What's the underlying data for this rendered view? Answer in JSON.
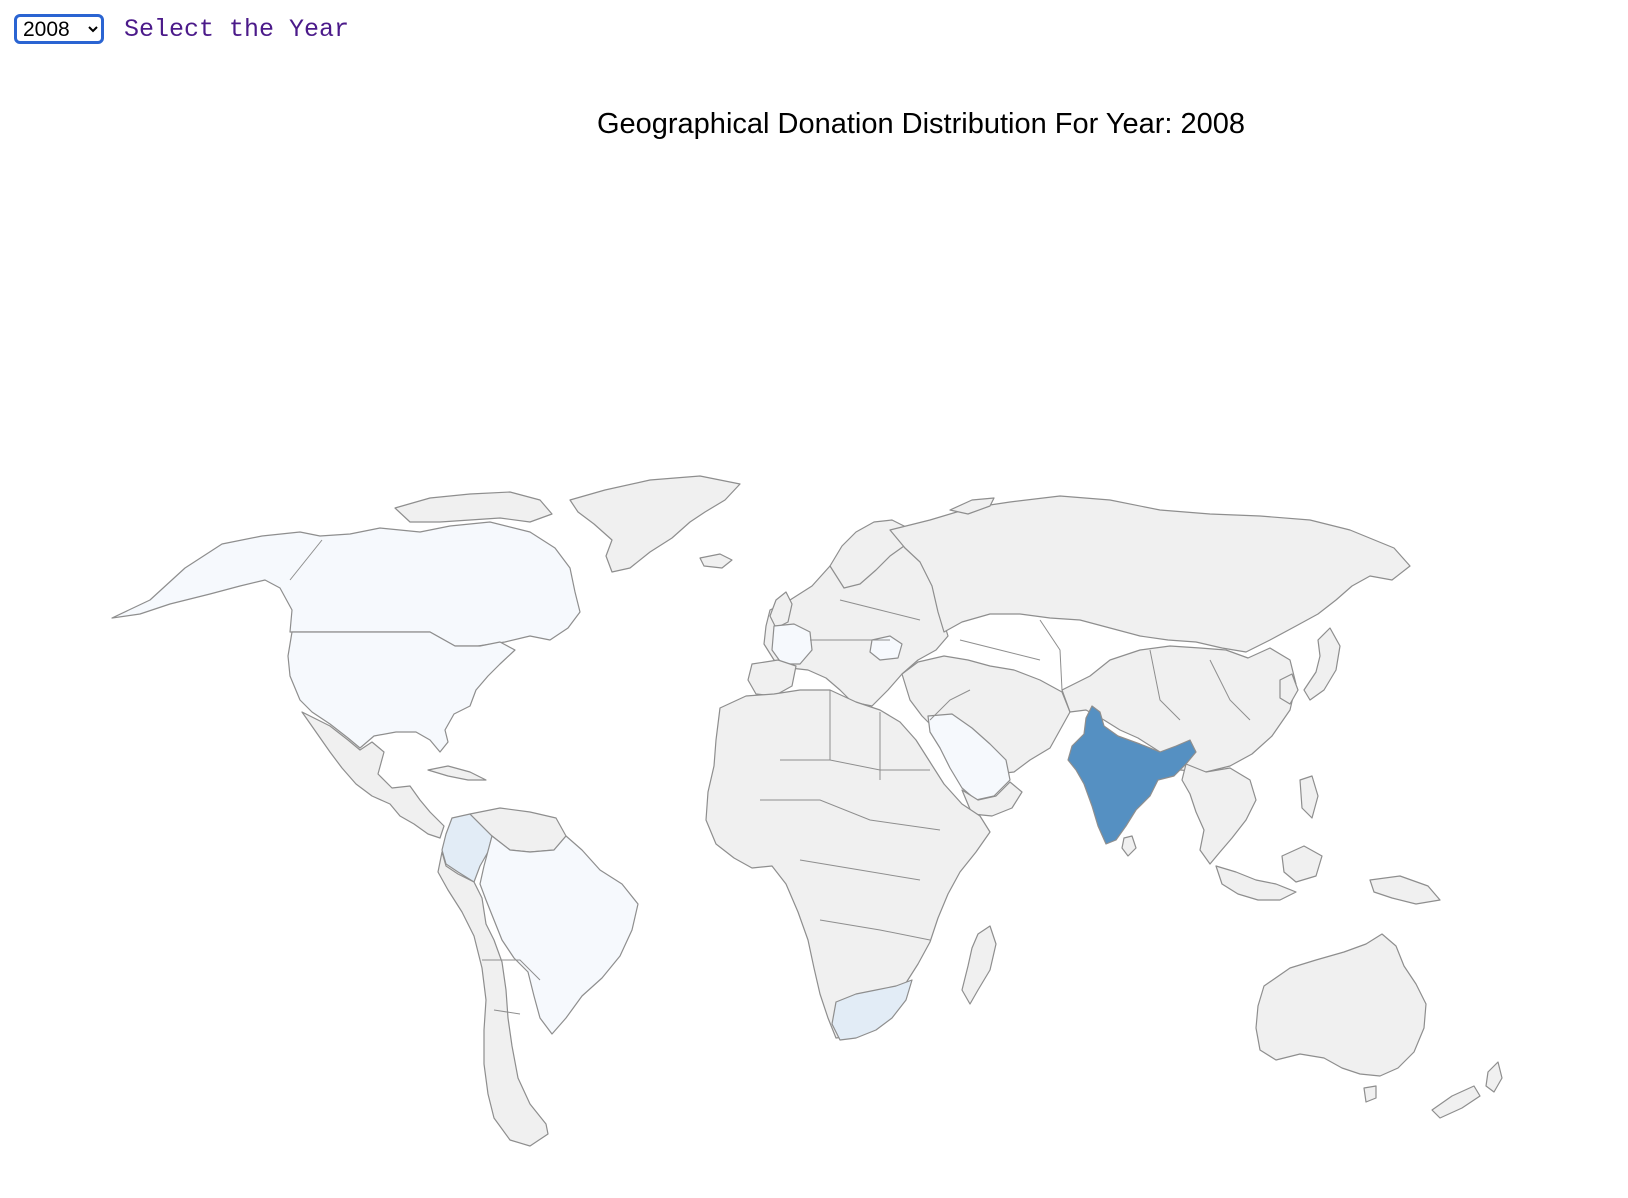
{
  "controls": {
    "year_options": [
      "2008"
    ],
    "selected_year": "2008",
    "label": "Select the Year",
    "label_color": "#4b1a8a"
  },
  "map": {
    "title": "Geographical Donation Distribution For Year: 2008",
    "default_fill": "#f0f0f0",
    "border_color": "#8e8e8e",
    "highlighted_regions": [
      {
        "name": "India",
        "fill": "#5590c2"
      },
      {
        "name": "Colombia",
        "fill": "#e2ecf6"
      },
      {
        "name": "South Africa",
        "fill": "#e2ecf6"
      },
      {
        "name": "Canada",
        "fill": "#f6f9fd"
      },
      {
        "name": "United States",
        "fill": "#f6f9fd"
      },
      {
        "name": "Brazil",
        "fill": "#f6f9fd"
      },
      {
        "name": "Saudi Arabia",
        "fill": "#f6f9fd"
      },
      {
        "name": "France",
        "fill": "#f6f9fd"
      },
      {
        "name": "Romania",
        "fill": "#f6f9fd"
      }
    ]
  }
}
